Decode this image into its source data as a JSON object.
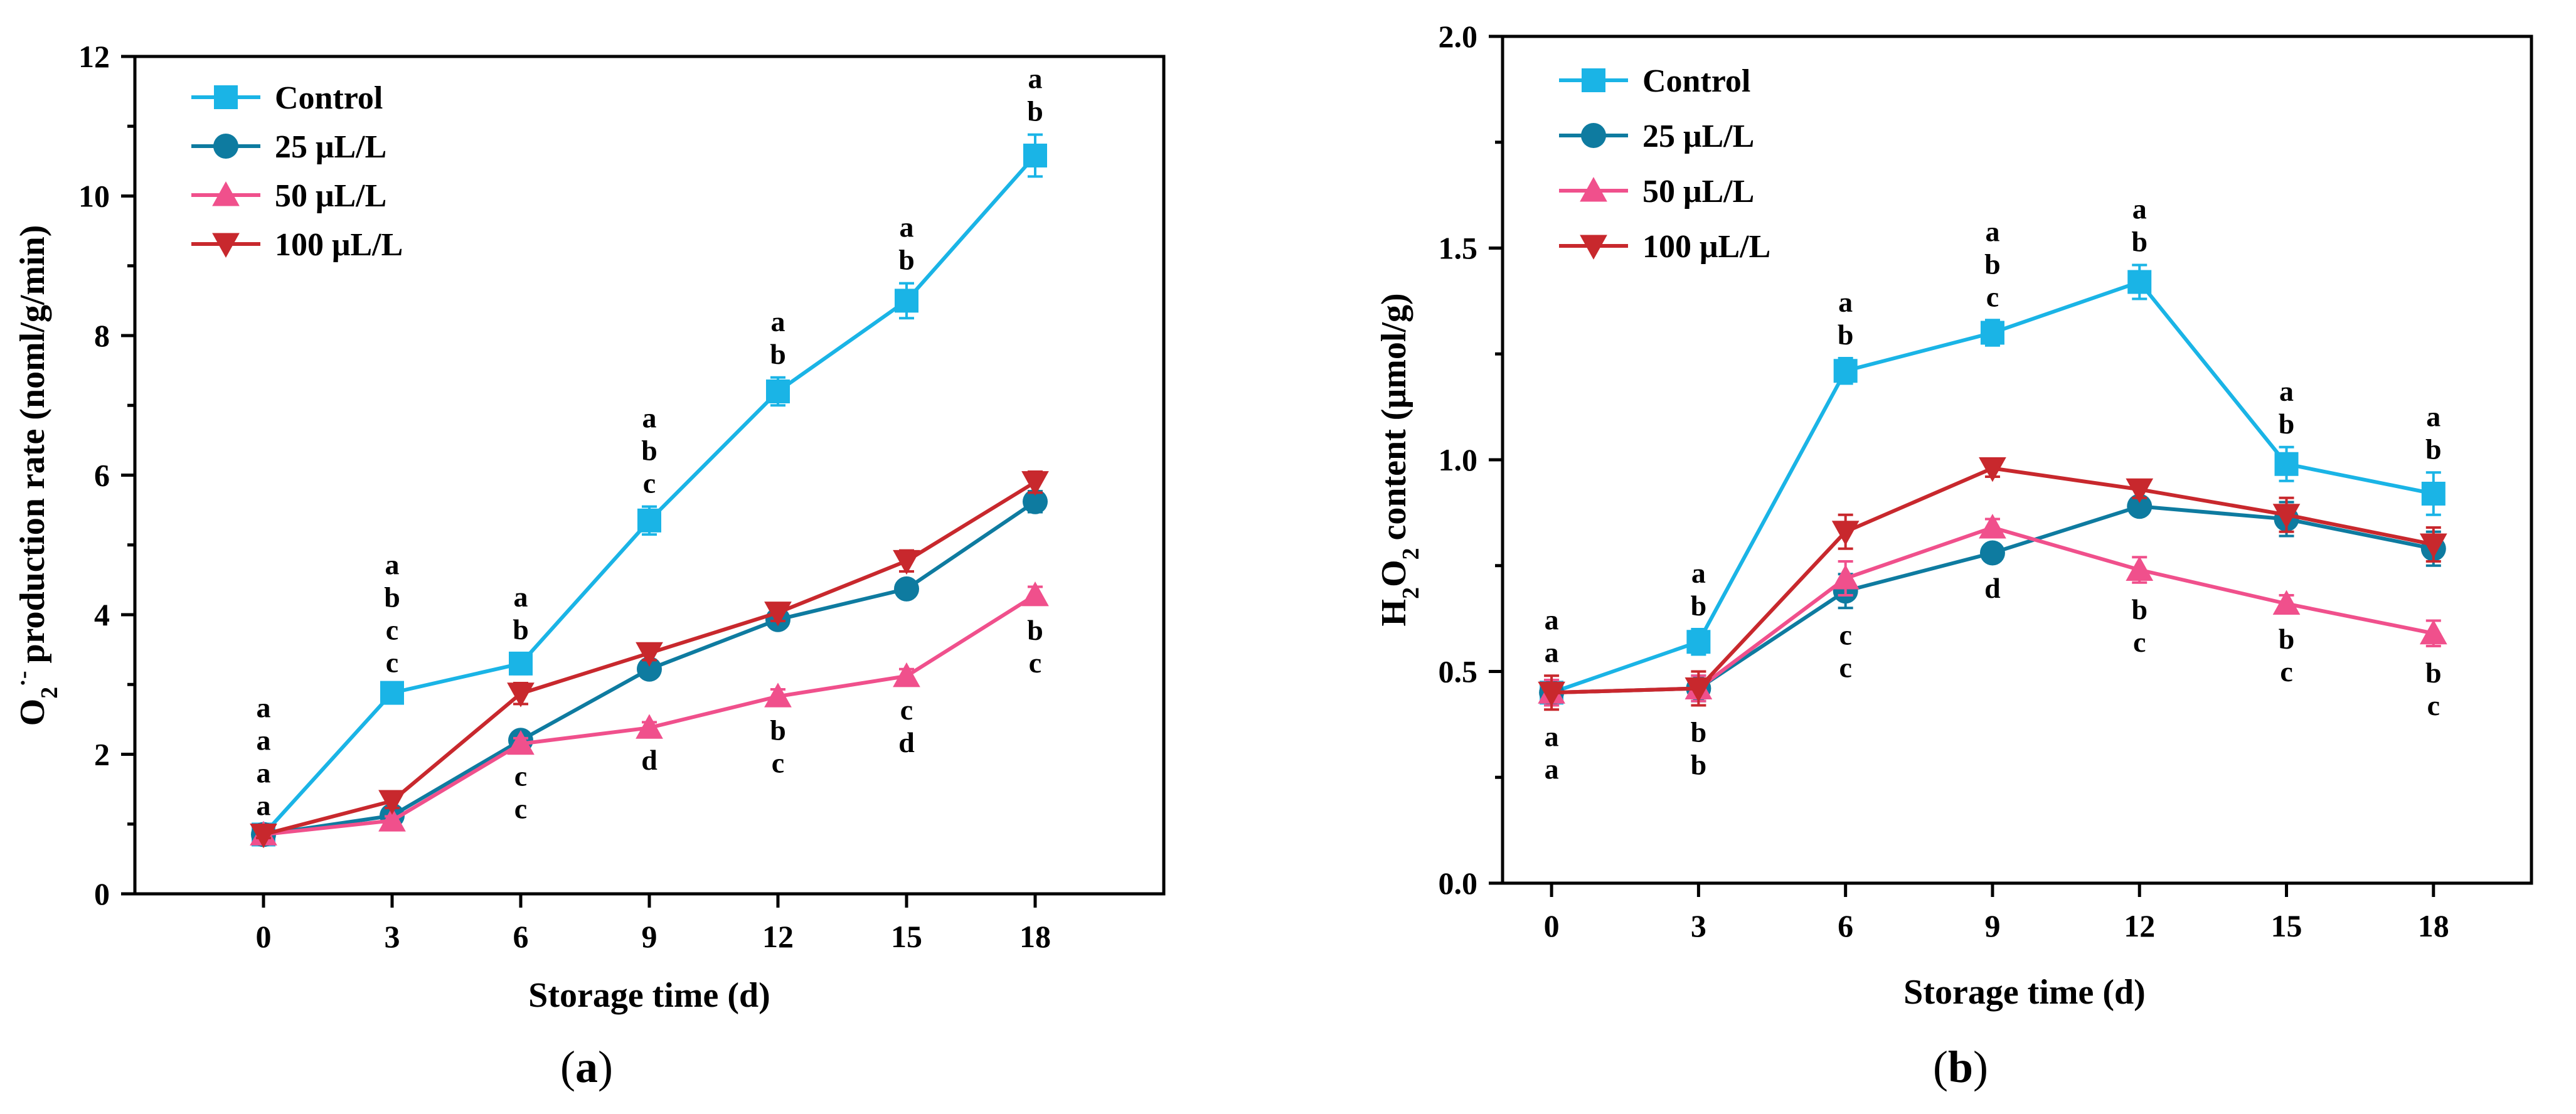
{
  "chart_data": [
    {
      "type": "line",
      "panel": "(a)",
      "panel_letter": "a",
      "xlabel": "Storage time (d)",
      "ylabel": "production rate (noml/g/min)",
      "ylabel_prefix": "O",
      "ylabel_sub": "2",
      "ylabel_sup": "·-",
      "x": [
        0,
        3,
        6,
        9,
        12,
        15,
        18
      ],
      "x_ticks": [
        0,
        3,
        6,
        9,
        12,
        15,
        18
      ],
      "xlim": [
        -3,
        21
      ],
      "ylim": [
        0,
        12
      ],
      "y_ticks": [
        0,
        2,
        4,
        6,
        8,
        10,
        12
      ],
      "y_tick_decimals": 0,
      "legend_position": "top-left",
      "series": [
        {
          "name": "Control",
          "color": "#1ab4e6",
          "marker": "square",
          "values": [
            0.85,
            2.88,
            3.3,
            5.35,
            7.2,
            8.5,
            10.58
          ],
          "errors": [
            0.08,
            0.1,
            0.15,
            0.2,
            0.2,
            0.25,
            0.3
          ]
        },
        {
          "name": "25 μL/L",
          "color": "#0e7ba0",
          "marker": "circle",
          "values": [
            0.85,
            1.12,
            2.2,
            3.22,
            3.93,
            4.37,
            5.62
          ],
          "errors": [
            0.05,
            0.08,
            0.1,
            0.1,
            0.12,
            0.12,
            0.15
          ]
        },
        {
          "name": "50 μL/L",
          "color": "#f0508c",
          "marker": "triangle-up",
          "values": [
            0.85,
            1.05,
            2.15,
            2.38,
            2.83,
            3.12,
            4.28
          ],
          "errors": [
            0.05,
            0.06,
            0.08,
            0.08,
            0.1,
            0.1,
            0.12
          ]
        },
        {
          "name": "100 μL/L",
          "color": "#c8282d",
          "marker": "triangle-down",
          "values": [
            0.85,
            1.33,
            2.87,
            3.45,
            4.03,
            4.77,
            5.9
          ],
          "errors": [
            0.05,
            0.1,
            0.15,
            0.1,
            0.12,
            0.15,
            0.15
          ]
        }
      ],
      "significance_letters": [
        {
          "x": 0,
          "above": [
            "a",
            "a",
            "a",
            "a"
          ],
          "below": []
        },
        {
          "x": 3,
          "above": [
            "a",
            "b",
            "c",
            "c"
          ],
          "below": []
        },
        {
          "x": 6,
          "above": [
            "a",
            "b"
          ],
          "below": [
            "c",
            "c"
          ]
        },
        {
          "x": 9,
          "above": [
            "a",
            "b",
            "c"
          ],
          "below": [
            "d"
          ]
        },
        {
          "x": 12,
          "above": [
            "a",
            "b"
          ],
          "below": [
            "b",
            "c"
          ]
        },
        {
          "x": 15,
          "above": [
            "a",
            "b"
          ],
          "below": [
            "c",
            "d"
          ]
        },
        {
          "x": 18,
          "above": [
            "a",
            "b"
          ],
          "below": [
            "b",
            "c"
          ]
        }
      ]
    },
    {
      "type": "line",
      "panel": "(b)",
      "panel_letter": "b",
      "xlabel": "Storage time (d)",
      "ylabel": "content (μmol/g)",
      "ylabel_prefix": "H",
      "ylabel_sub": "2",
      "ylabel_mid": "O",
      "ylabel_sub2": "2",
      "x": [
        0,
        3,
        6,
        9,
        12,
        15,
        18
      ],
      "x_ticks": [
        0,
        3,
        6,
        9,
        12,
        15,
        18
      ],
      "xlim": [
        -1,
        20
      ],
      "ylim": [
        0,
        2.0
      ],
      "y_ticks": [
        0,
        0.5,
        1.0,
        1.5,
        2.0
      ],
      "y_tick_decimals": 1,
      "legend_position": "top-left",
      "series": [
        {
          "name": "Control",
          "color": "#1ab4e6",
          "marker": "square",
          "values": [
            0.45,
            0.57,
            1.21,
            1.3,
            1.42,
            0.99,
            0.92
          ],
          "errors": [
            0.02,
            0.03,
            0.03,
            0.03,
            0.04,
            0.04,
            0.05
          ]
        },
        {
          "name": "25 μL/L",
          "color": "#0e7ba0",
          "marker": "circle",
          "values": [
            0.45,
            0.46,
            0.69,
            0.78,
            0.89,
            0.86,
            0.79
          ],
          "errors": [
            0.03,
            0.03,
            0.04,
            0.02,
            0.02,
            0.04,
            0.04
          ]
        },
        {
          "name": "50 μL/L",
          "color": "#f0508c",
          "marker": "triangle-up",
          "values": [
            0.45,
            0.46,
            0.72,
            0.84,
            0.74,
            0.66,
            0.59
          ],
          "errors": [
            0.03,
            0.03,
            0.04,
            0.02,
            0.03,
            0.02,
            0.03
          ]
        },
        {
          "name": "100 μL/L",
          "color": "#c8282d",
          "marker": "triangle-down",
          "values": [
            0.45,
            0.46,
            0.83,
            0.98,
            0.93,
            0.87,
            0.8
          ],
          "errors": [
            0.04,
            0.04,
            0.04,
            0.02,
            0.02,
            0.04,
            0.04
          ]
        }
      ],
      "significance_letters": [
        {
          "x": 0,
          "above": [
            "a",
            "a"
          ],
          "below": [
            "a",
            "a"
          ]
        },
        {
          "x": 3,
          "above": [
            "a",
            "b"
          ],
          "below": [
            "b",
            "b"
          ]
        },
        {
          "x": 6,
          "above": [
            "a",
            "b"
          ],
          "below": [
            "c",
            "c"
          ]
        },
        {
          "x": 9,
          "above": [
            "a",
            "b",
            "c"
          ],
          "below": [
            "d"
          ]
        },
        {
          "x": 12,
          "above": [
            "a",
            "b"
          ],
          "below": [
            "b",
            "c"
          ]
        },
        {
          "x": 15,
          "above": [
            "a",
            "b"
          ],
          "below": [
            "b",
            "c"
          ]
        },
        {
          "x": 18,
          "above": [
            "a",
            "b"
          ],
          "below": [
            "b",
            "c"
          ]
        }
      ]
    }
  ]
}
